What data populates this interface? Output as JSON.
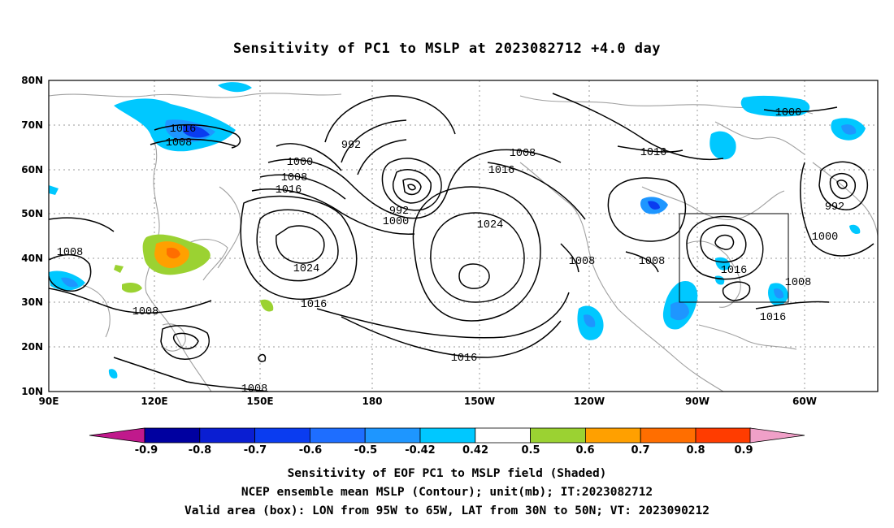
{
  "title": "Sensitivity of PC1 to MSLP at 2023082712 +4.0 day",
  "lat_labels": [
    "80N",
    "70N",
    "60N",
    "50N",
    "40N",
    "30N",
    "20N",
    "10N"
  ],
  "lon_labels": [
    "90E",
    "120E",
    "150E",
    "180",
    "150W",
    "120W",
    "90W",
    "60W"
  ],
  "colorbar": {
    "colors": [
      "#c0198c",
      "#0000a0",
      "#0a1ed2",
      "#0a3cf0",
      "#1e6eff",
      "#1e96ff",
      "#00c8ff",
      "#ffffff",
      "#9bd232",
      "#ffa000",
      "#ff6e00",
      "#ff3c00",
      "#ff0000",
      "#f0a0c8"
    ],
    "labels": [
      "-0.9",
      "-0.8",
      "-0.7",
      "-0.6",
      "-0.5",
      "-0.42",
      "0.42",
      "0.5",
      "0.6",
      "0.7",
      "0.8",
      "0.9"
    ]
  },
  "contour_labels": [
    "1016",
    "1008",
    "992",
    "1000",
    "1008",
    "1016",
    "992",
    "1000",
    "1008",
    "1024",
    "1024",
    "1016",
    "1008",
    "1016",
    "1000",
    "1016",
    "992",
    "1000",
    "1008",
    "1008",
    "1016",
    "1008",
    "1016",
    "1016",
    "1008",
    "1008"
  ],
  "valid_box": {
    "lon_from": "95W",
    "lon_to": "65W",
    "lat_from": "30N",
    "lat_to": "50N"
  },
  "captions": {
    "line1": "Sensitivity of EOF PC1 to MSLP field (Shaded)",
    "line2": "NCEP ensemble mean MSLP (Contour); unit(mb); IT:2023082712",
    "line3": "Valid area (box): LON from 95W to 65W, LAT from 30N to 50N; VT: 2023090212"
  }
}
